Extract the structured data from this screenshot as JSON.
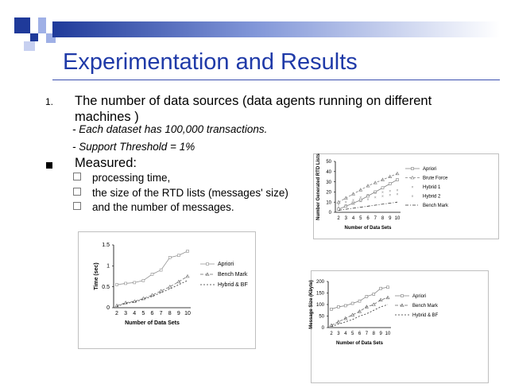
{
  "slide": {
    "title": "Experimentation and Results",
    "item1": {
      "number": "1.",
      "text": "The number of data sources (data agents running on different machines )",
      "details": [
        "- Each dataset has 100,000 transactions.",
        "- Support Threshold = 1%"
      ]
    },
    "measured": {
      "label": "Measured:",
      "items": [
        "processing time,",
        "the size of the RTD lists (messages' size)",
        "and the number of messages."
      ]
    }
  },
  "chart_data": [
    {
      "type": "line",
      "title": "",
      "xlabel": "Number of Data Sets",
      "ylabel": "Number Generated RTD Lists",
      "x": [
        2,
        3,
        4,
        5,
        6,
        7,
        8,
        9,
        10
      ],
      "ylim": [
        0,
        50
      ],
      "yticks": [
        0,
        10,
        20,
        30,
        40,
        50
      ],
      "legend_position": "right",
      "series": [
        {
          "name": "Apriori",
          "values": [
            3,
            6,
            9,
            12,
            16,
            20,
            24,
            28,
            32
          ],
          "color": "#808080"
        },
        {
          "name": "Brute Force",
          "values": [
            10,
            14,
            18,
            22,
            26,
            29,
            32,
            35,
            38
          ],
          "color": "#808080"
        },
        {
          "name": "Hybrid 1",
          "values": [
            8,
            10,
            12,
            15,
            17,
            19,
            20,
            21,
            22
          ],
          "color": "#808080"
        },
        {
          "name": "Hybrid 2",
          "values": [
            5,
            7,
            9,
            11,
            13,
            15,
            16,
            17,
            18
          ],
          "color": "#808080"
        },
        {
          "name": "Bench Mark",
          "values": [
            2,
            3,
            4,
            5,
            6,
            7,
            8,
            9,
            10
          ],
          "color": "#333333"
        }
      ]
    },
    {
      "type": "line",
      "title": "",
      "xlabel": "Number of Data Sets",
      "ylabel": "Time (sec)",
      "x": [
        2,
        3,
        4,
        5,
        6,
        7,
        8,
        9,
        10
      ],
      "ylim": [
        0,
        1.5
      ],
      "yticks": [
        "0",
        "0.5",
        "1",
        "1.5"
      ],
      "legend_position": "right",
      "series": [
        {
          "name": "Apriori",
          "values": [
            0.55,
            0.58,
            0.6,
            0.65,
            0.8,
            0.9,
            1.2,
            1.25,
            1.35
          ],
          "color": "#909090"
        },
        {
          "name": "Bench Mark",
          "values": [
            0.05,
            0.12,
            0.15,
            0.22,
            0.3,
            0.4,
            0.5,
            0.62,
            0.75
          ],
          "color": "#707070"
        },
        {
          "name": "Hybrid & BF",
          "values": [
            0.03,
            0.1,
            0.14,
            0.2,
            0.27,
            0.36,
            0.45,
            0.55,
            0.65
          ],
          "color": "#333333"
        }
      ]
    },
    {
      "type": "line",
      "title": "",
      "xlabel": "Number of Data Sets",
      "ylabel": "Message Size (Kbyte)",
      "x": [
        2,
        3,
        4,
        5,
        6,
        7,
        8,
        9,
        10
      ],
      "ylim": [
        0,
        200
      ],
      "yticks": [
        0,
        50,
        100,
        150,
        200
      ],
      "legend_position": "right",
      "series": [
        {
          "name": "Apriori",
          "values": [
            80,
            90,
            95,
            105,
            115,
            135,
            145,
            170,
            175
          ],
          "color": "#808080"
        },
        {
          "name": "Bench Mark",
          "values": [
            10,
            25,
            40,
            55,
            70,
            90,
            100,
            120,
            130
          ],
          "color": "#666666"
        },
        {
          "name": "Hybrid & BF",
          "values": [
            5,
            15,
            25,
            35,
            50,
            60,
            75,
            90,
            100
          ],
          "color": "#333333"
        }
      ]
    }
  ]
}
